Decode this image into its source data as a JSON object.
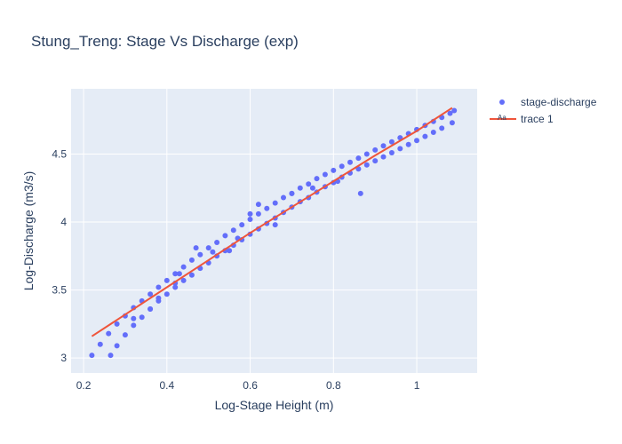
{
  "chart_data": {
    "type": "scatter",
    "title": "Stung_Treng: Stage Vs Discharge (exp)",
    "xlabel": "Log-Stage Height (m)",
    "ylabel": "Log-Discharge (m3/s)",
    "xlim": [
      0.17,
      1.145
    ],
    "ylim": [
      2.89,
      4.98
    ],
    "xticks": [
      0.2,
      0.4,
      0.6,
      0.8,
      1
    ],
    "xtick_labels": [
      "0.2",
      "0.4",
      "0.6",
      "0.8",
      "1"
    ],
    "yticks": [
      3,
      3.5,
      4,
      4.5
    ],
    "ytick_labels": [
      "3",
      "3.5",
      "4",
      "4.5"
    ],
    "grid": true,
    "legend_position": "top-right",
    "colors": {
      "scatter": "#636efa",
      "fit": "#ef553b",
      "plot_bg": "#e5ecf6",
      "grid": "#ffffff",
      "text": "#2a3f5f"
    },
    "series": [
      {
        "name": "stage-discharge",
        "mode": "markers",
        "x": [
          0.22,
          0.24,
          0.26,
          0.28,
          0.3,
          0.32,
          0.34,
          0.36,
          0.38,
          0.4,
          0.42,
          0.44,
          0.46,
          0.48,
          0.5,
          0.52,
          0.54,
          0.56,
          0.58,
          0.6,
          0.62,
          0.64,
          0.66,
          0.68,
          0.7,
          0.72,
          0.74,
          0.76,
          0.78,
          0.8,
          0.82,
          0.84,
          0.86,
          0.88,
          0.9,
          0.92,
          0.94,
          0.96,
          0.98,
          1.0,
          1.02,
          1.04,
          1.06,
          1.08,
          1.09,
          0.265,
          0.28,
          0.3,
          0.32,
          0.34,
          0.36,
          0.38,
          0.4,
          0.42,
          0.44,
          0.46,
          0.48,
          0.5,
          0.52,
          0.54,
          0.56,
          0.58,
          0.6,
          0.62,
          0.64,
          0.66,
          0.68,
          0.7,
          0.72,
          0.74,
          0.76,
          0.78,
          0.8,
          0.82,
          0.84,
          0.86,
          0.88,
          0.9,
          0.92,
          0.94,
          0.96,
          0.98,
          1.0,
          1.02,
          1.04,
          1.06,
          1.085,
          0.47,
          0.57,
          0.42,
          0.6,
          0.55,
          0.36,
          0.32,
          0.62,
          0.7,
          0.75,
          0.81,
          0.865,
          0.43,
          0.66,
          0.51,
          0.38
        ],
        "y": [
          3.02,
          3.1,
          3.18,
          3.25,
          3.31,
          3.37,
          3.42,
          3.47,
          3.52,
          3.57,
          3.62,
          3.67,
          3.72,
          3.76,
          3.81,
          3.85,
          3.9,
          3.94,
          3.98,
          4.02,
          4.06,
          4.1,
          4.14,
          4.18,
          4.21,
          4.25,
          4.28,
          4.32,
          4.35,
          4.38,
          4.41,
          4.44,
          4.47,
          4.5,
          4.53,
          4.56,
          4.59,
          4.62,
          4.65,
          4.68,
          4.71,
          4.74,
          4.77,
          4.8,
          4.82,
          3.02,
          3.09,
          3.17,
          3.24,
          3.3,
          3.36,
          3.42,
          3.47,
          3.52,
          3.57,
          3.61,
          3.66,
          3.7,
          3.75,
          3.79,
          3.83,
          3.87,
          3.91,
          3.95,
          3.99,
          4.03,
          4.07,
          4.11,
          4.15,
          4.18,
          4.22,
          4.26,
          4.29,
          4.33,
          4.36,
          4.39,
          4.42,
          4.45,
          4.48,
          4.51,
          4.54,
          4.57,
          4.6,
          4.63,
          4.66,
          4.69,
          4.73,
          3.81,
          3.88,
          3.55,
          4.06,
          3.79,
          3.36,
          3.29,
          4.13,
          4.21,
          4.25,
          4.3,
          4.21,
          3.62,
          3.98,
          3.78,
          3.44
        ]
      },
      {
        "name": "trace 1",
        "mode": "lines",
        "x": [
          0.22,
          0.3,
          0.4,
          0.5,
          0.6,
          0.7,
          0.8,
          0.9,
          1.0,
          1.085
        ],
        "y": [
          3.16,
          3.32,
          3.52,
          3.72,
          3.92,
          4.11,
          4.3,
          4.49,
          4.67,
          4.84
        ]
      }
    ]
  }
}
